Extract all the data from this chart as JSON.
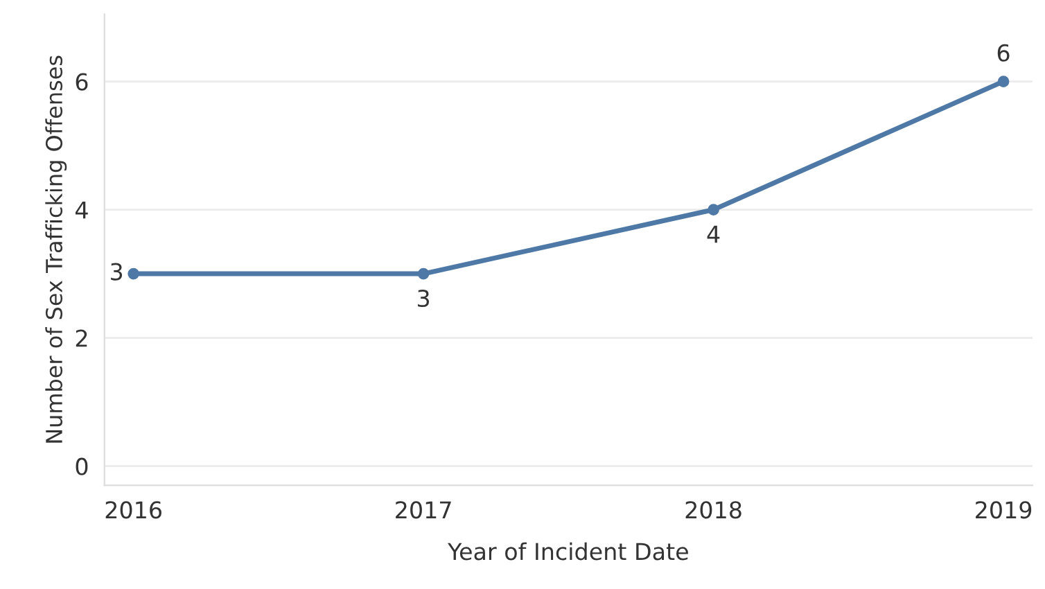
{
  "chart_data": {
    "type": "line",
    "xlabel": "Year of Incident Date",
    "ylabel": "Number of Sex Trafficking Offenses",
    "x": [
      2016,
      2017,
      2018,
      2019
    ],
    "series": [
      {
        "color": "#4e79a7",
        "values": [
          3,
          3,
          4,
          6
        ]
      }
    ],
    "xlim": [
      2015.9,
      2019.1
    ],
    "xticks": [
      2016,
      2017,
      2018,
      2019
    ],
    "ylim": [
      -0.3,
      7.05
    ],
    "yticks": [
      0,
      2,
      4,
      6
    ],
    "grid": "y",
    "marker": "circle",
    "line_style": "solid",
    "data_labels": true
  }
}
